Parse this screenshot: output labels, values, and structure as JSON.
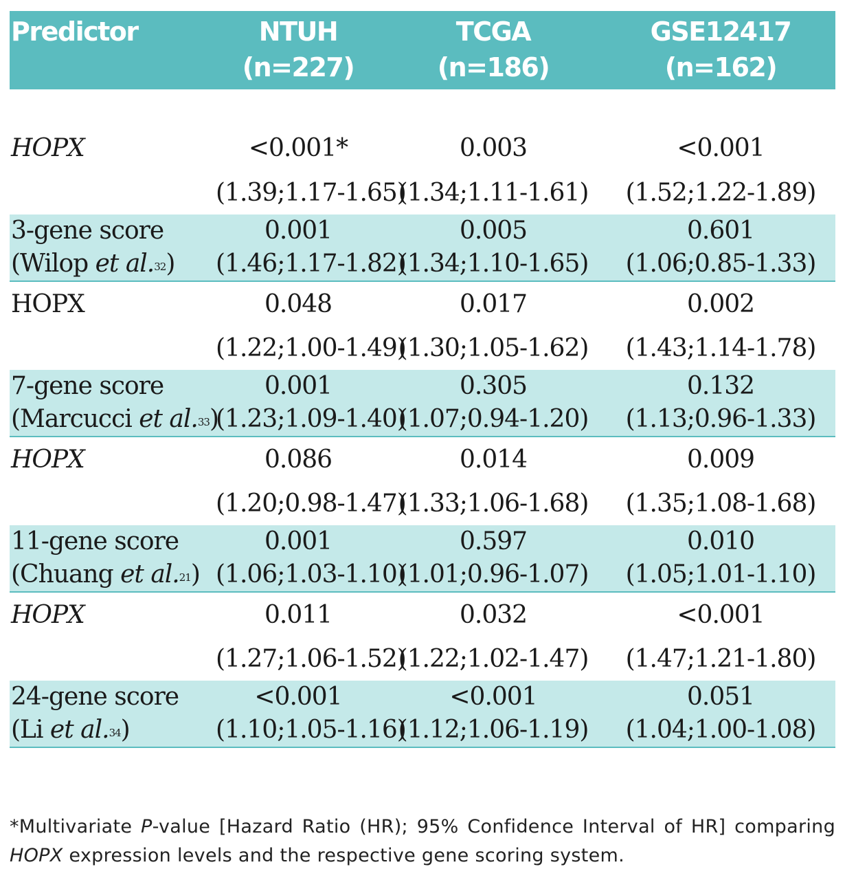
{
  "header": {
    "predictor": "Predictor",
    "datasets": [
      {
        "name": "NTUH",
        "n": "(n=227)"
      },
      {
        "name": "TCGA",
        "n": "(n=186)"
      },
      {
        "name": "GSE12417",
        "n": "(n=162)"
      }
    ]
  },
  "rows": [
    {
      "label": "HOPX",
      "p": [
        "<0.001*",
        "0.003",
        "<0.001"
      ],
      "hr": [
        "(1.39;1.17-1.65)",
        "(1.34;1.11-1.61)",
        "(1.52;1.22-1.89)"
      ]
    },
    {
      "label": "3-gene score",
      "ref_prefix": "(Wilop ",
      "ref_italic": "et al.",
      "ref_sup": "32",
      "ref_suffix": ")",
      "p": [
        "0.001",
        "0.005",
        "0.601"
      ],
      "hr": [
        "(1.46;1.17-1.82)",
        "(1.34;1.10-1.65)",
        "(1.06;0.85-1.33)"
      ]
    },
    {
      "label": "HOPX",
      "p": [
        "0.048",
        "0.017",
        "0.002"
      ],
      "hr": [
        "(1.22;1.00-1.49)",
        "(1.30;1.05-1.62)",
        "(1.43;1.14-1.78)"
      ]
    },
    {
      "label": "7-gene score",
      "ref_prefix": "(Marcucci ",
      "ref_italic": "et al.",
      "ref_sup": "33",
      "ref_suffix": ")",
      "p": [
        "0.001",
        "0.305",
        "0.132"
      ],
      "hr": [
        "(1.23;1.09-1.40)",
        "(1.07;0.94-1.20)",
        "(1.13;0.96-1.33)"
      ]
    },
    {
      "label": "HOPX",
      "p": [
        "0.086",
        "0.014",
        "0.009"
      ],
      "hr": [
        "(1.20;0.98-1.47)",
        "(1.33;1.06-1.68)",
        "(1.35;1.08-1.68)"
      ]
    },
    {
      "label": "11-gene score",
      "ref_prefix": "(Chuang ",
      "ref_italic": "et al.",
      "ref_sup": "21",
      "ref_suffix": ")",
      "p": [
        "0.001",
        "0.597",
        "0.010"
      ],
      "hr": [
        "(1.06;1.03-1.10)",
        "(1.01;0.96-1.07)",
        "(1.05;1.01-1.10)"
      ]
    },
    {
      "label": "HOPX",
      "p": [
        "0.011",
        "0.032",
        "<0.001"
      ],
      "hr": [
        "(1.27;1.06-1.52)",
        "(1.22;1.02-1.47)",
        "(1.47;1.21-1.80)"
      ]
    },
    {
      "label": "24-gene score",
      "ref_prefix": "(Li ",
      "ref_italic": "et al.",
      "ref_sup": "34",
      "ref_suffix": ")",
      "p": [
        "<0.001",
        "<0.001",
        "0.051"
      ],
      "hr": [
        "(1.10;1.05-1.16)",
        "(1.12;1.06-1.19)",
        "(1.04;1.00-1.08)"
      ]
    }
  ],
  "footnote": {
    "part1": "*Multivariate ",
    "italic1": "P",
    "part2": "-value [Hazard Ratio (HR); 95% Confidence Interval of HR] comparing ",
    "italic2": "HOPX",
    "part3": " expression levels and the respective gene scoring system."
  },
  "colors": {
    "header_bg": "#5bbcbf",
    "stripe_bg": "#c4e9e9",
    "header_text": "#ffffff"
  }
}
